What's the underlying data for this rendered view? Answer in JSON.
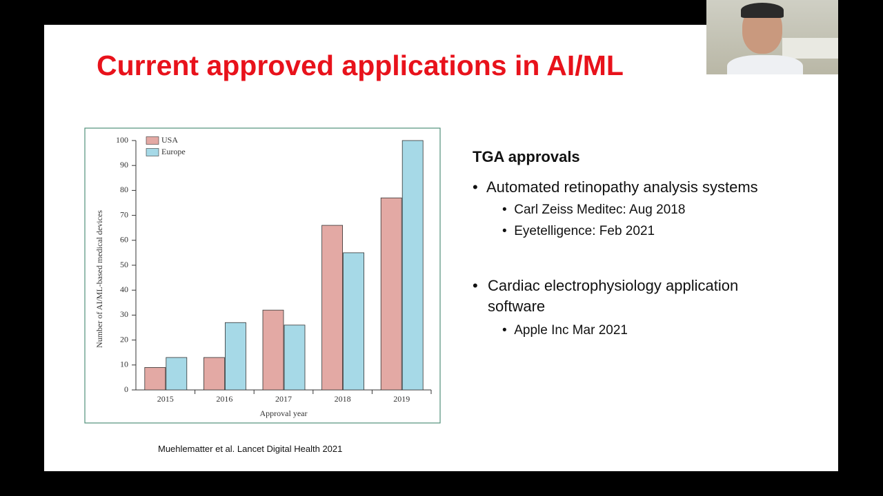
{
  "title": "Current approved applications in AI/ML",
  "citation": "Muehlematter et al. Lancet Digital Health 2021",
  "heading": "TGA approvals",
  "bullets": [
    {
      "text": "Automated retinopathy analysis systems",
      "sub": [
        "Carl Zeiss Meditec: Aug 2018",
        "Eyetelligence: Feb 2021"
      ]
    },
    {
      "text": "Cardiac electrophysiology application software",
      "sub": [
        "Apple Inc Mar 2021"
      ]
    }
  ],
  "chart_data": {
    "type": "bar",
    "categories": [
      "2015",
      "2016",
      "2017",
      "2018",
      "2019"
    ],
    "series": [
      {
        "name": "USA",
        "color": "#e3a9a4",
        "values": [
          9,
          13,
          32,
          66,
          77
        ]
      },
      {
        "name": "Europe",
        "color": "#a6d9e7",
        "values": [
          13,
          27,
          26,
          55,
          100
        ]
      }
    ],
    "x_label": "Approval year",
    "y_label": "Number of AI/ML-based medical devices",
    "ylim": [
      0,
      100
    ],
    "yticks": [
      0,
      10,
      20,
      30,
      40,
      50,
      60,
      70,
      80,
      90,
      100
    ],
    "legend": "top-left"
  }
}
